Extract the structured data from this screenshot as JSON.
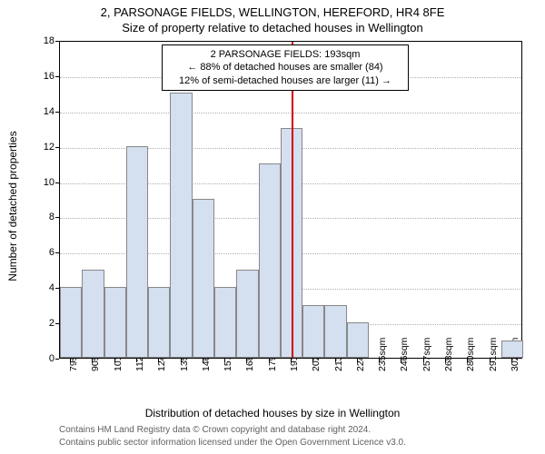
{
  "title_line1": "2, PARSONAGE FIELDS, WELLINGTON, HEREFORD, HR4 8FE",
  "title_line2": "Size of property relative to detached houses in Wellington",
  "y_axis_label": "Number of detached properties",
  "x_axis_label": "Distribution of detached houses by size in Wellington",
  "footer_line1": "Contains HM Land Registry data © Crown copyright and database right 2024.",
  "footer_line2": "Contains public sector information licensed under the Open Government Licence v3.0.",
  "plot": {
    "background_color": "#ffffff",
    "grid_color": "#b0b0b0",
    "axis_color": "#000000",
    "ylim": [
      0,
      18
    ],
    "ytick_step": 2,
    "yticks": [
      0,
      2,
      4,
      6,
      8,
      10,
      12,
      14,
      16,
      18
    ],
    "x_categories": [
      "79sqm",
      "90sqm",
      "101sqm",
      "112sqm",
      "124sqm",
      "135sqm",
      "146sqm",
      "157sqm",
      "168sqm",
      "179sqm",
      "191sqm",
      "202sqm",
      "213sqm",
      "224sqm",
      "235sqm",
      "246sqm",
      "257sqm",
      "268sqm",
      "280sqm",
      "291sqm",
      "302sqm"
    ],
    "bar_color": "#d4dff0",
    "bar_border_color": "#888888",
    "bar_values": [
      4,
      5,
      4,
      12,
      4,
      15,
      9,
      4,
      5,
      11,
      13,
      3,
      3,
      2,
      0,
      0,
      0,
      0,
      0,
      0,
      1
    ],
    "marker_index": 10,
    "marker_color": "#d00000",
    "annotation": {
      "line1": "2 PARSONAGE FIELDS: 193sqm",
      "line2": "← 88% of detached houses are smaller (84)",
      "line3": "12% of semi-detached houses are larger (11) →"
    }
  }
}
